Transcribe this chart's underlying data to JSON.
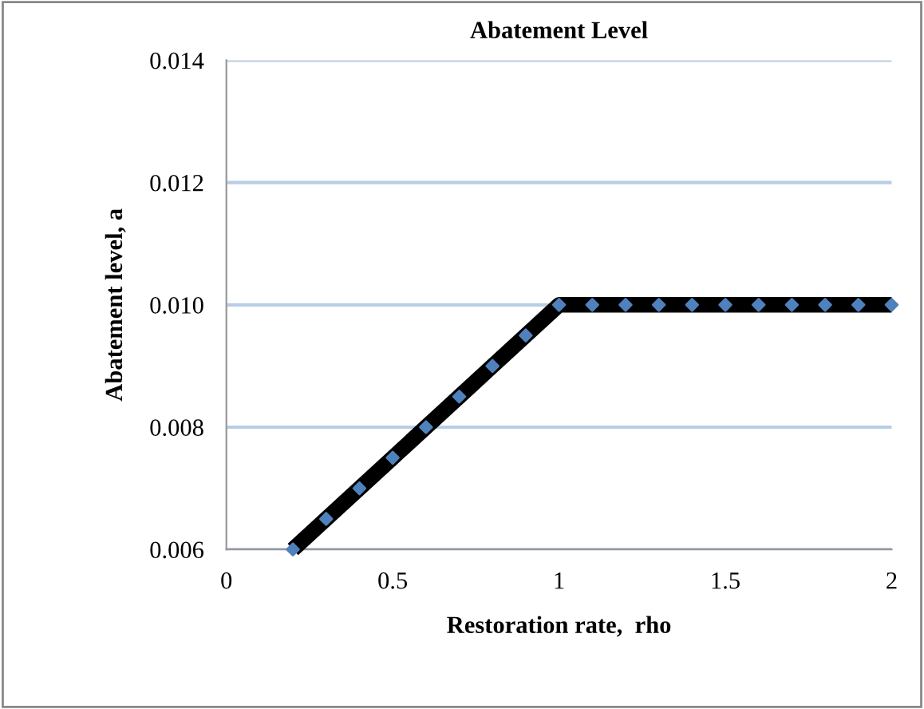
{
  "chart_data": {
    "type": "line",
    "title": "Abatement Level",
    "xlabel": "Restoration rate,  rho",
    "ylabel": "Abatement level, a",
    "x": [
      0.2,
      0.3,
      0.4,
      0.5,
      0.6,
      0.7,
      0.8,
      0.9,
      1.0,
      1.1,
      1.2,
      1.3,
      1.4,
      1.5,
      1.6,
      1.7,
      1.8,
      1.9,
      2.0
    ],
    "series": [
      {
        "color": "#000000",
        "marker": "none",
        "values": [
          0.006,
          0.0065,
          0.007,
          0.0075,
          0.008,
          0.0085,
          0.009,
          0.0095,
          0.01,
          0.01,
          0.01,
          0.01,
          0.01,
          0.01,
          0.01,
          0.01,
          0.01,
          0.01,
          0.01
        ]
      },
      {
        "type": "scatter",
        "color": "#4f81bd",
        "marker": "diamond",
        "values": [
          0.006,
          0.0065,
          0.007,
          0.0075,
          0.008,
          0.0085,
          0.009,
          0.0095,
          0.01,
          0.01,
          0.01,
          0.01,
          0.01,
          0.01,
          0.01,
          0.01,
          0.01,
          0.01,
          0.01
        ]
      }
    ],
    "xlim": [
      0,
      2
    ],
    "xticks": [
      0,
      0.5,
      1,
      1.5,
      2
    ],
    "ylim": [
      0.006,
      0.014
    ],
    "yticks": [
      {
        "value": 0.006,
        "label": "0.006"
      },
      {
        "value": 0.008,
        "label": "0.008"
      },
      {
        "value": 0.01,
        "label": "0.010"
      },
      {
        "value": 0.012,
        "label": "0.012"
      },
      {
        "value": 0.014,
        "label": "0.014"
      }
    ],
    "grid": "y",
    "legend": false
  }
}
